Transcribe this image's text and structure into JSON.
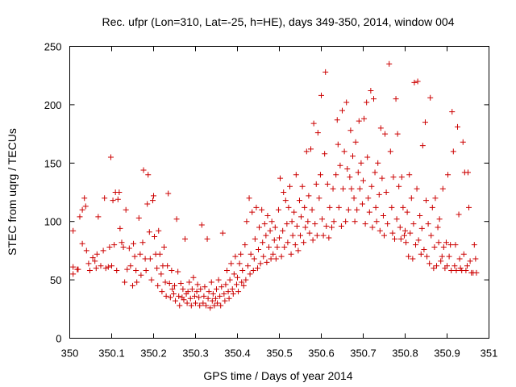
{
  "chart_data": {
    "type": "scatter",
    "title": "Rec. ufpr (Lon=310, Lat=-25, h=HE), days 349-350, 2014, window 004",
    "xlabel": "GPS time / Days of year 2014",
    "ylabel": "STEC from uqrg / TECUs",
    "xlim": [
      350,
      351
    ],
    "ylim": [
      0,
      250
    ],
    "xticks": [
      350,
      350.1,
      350.2,
      350.3,
      350.4,
      350.5,
      350.6,
      350.7,
      350.8,
      350.9,
      351
    ],
    "xtick_labels": [
      "350",
      "350.1",
      "350.2",
      "350.3",
      "350.4",
      "350.5",
      "350.6",
      "350.7",
      "350.8",
      "350.9",
      "351"
    ],
    "yticks": [
      0,
      50,
      100,
      150,
      200,
      250
    ],
    "ytick_labels": [
      "0",
      "50",
      "100",
      "150",
      "200",
      "250"
    ],
    "grid": false,
    "legend": "none",
    "marker": "plus",
    "color": "#cc0000",
    "points": [
      [
        350.008,
        92
      ],
      [
        350.008,
        61
      ],
      [
        350.008,
        55
      ],
      [
        350.018,
        59
      ],
      [
        350.02,
        59
      ],
      [
        350.024,
        104
      ],
      [
        350.03,
        110
      ],
      [
        350.03,
        81
      ],
      [
        350.035,
        120
      ],
      [
        350.038,
        113
      ],
      [
        350.04,
        75
      ],
      [
        350.045,
        64
      ],
      [
        350.048,
        58
      ],
      [
        350.055,
        69
      ],
      [
        350.06,
        66
      ],
      [
        350.063,
        60
      ],
      [
        350.065,
        72
      ],
      [
        350.068,
        104
      ],
      [
        350.074,
        62
      ],
      [
        350.08,
        75
      ],
      [
        350.083,
        120
      ],
      [
        350.086,
        60
      ],
      [
        350.092,
        61
      ],
      [
        350.095,
        78
      ],
      [
        350.098,
        155
      ],
      [
        350.1,
        62
      ],
      [
        350.103,
        118
      ],
      [
        350.106,
        80
      ],
      [
        350.109,
        125
      ],
      [
        350.112,
        58
      ],
      [
        350.115,
        119
      ],
      [
        350.118,
        125
      ],
      [
        350.12,
        94
      ],
      [
        350.124,
        82
      ],
      [
        350.128,
        78
      ],
      [
        350.131,
        48
      ],
      [
        350.134,
        110
      ],
      [
        350.137,
        59
      ],
      [
        350.142,
        77
      ],
      [
        350.145,
        62
      ],
      [
        350.15,
        45
      ],
      [
        350.152,
        81
      ],
      [
        350.155,
        70
      ],
      [
        350.158,
        58
      ],
      [
        350.16,
        48
      ],
      [
        350.165,
        103
      ],
      [
        350.168,
        72
      ],
      [
        350.17,
        54
      ],
      [
        350.174,
        82
      ],
      [
        350.176,
        144
      ],
      [
        350.18,
        68
      ],
      [
        350.182,
        58
      ],
      [
        350.185,
        115
      ],
      [
        350.187,
        140
      ],
      [
        350.19,
        91
      ],
      [
        350.192,
        68
      ],
      [
        350.195,
        50
      ],
      [
        350.198,
        118
      ],
      [
        350.2,
        122
      ],
      [
        350.202,
        87
      ],
      [
        350.205,
        72
      ],
      [
        350.208,
        60
      ],
      [
        350.21,
        45
      ],
      [
        350.212,
        92
      ],
      [
        350.215,
        72
      ],
      [
        350.218,
        55
      ],
      [
        350.22,
        40
      ],
      [
        350.222,
        62
      ],
      [
        350.225,
        78
      ],
      [
        350.228,
        48
      ],
      [
        350.23,
        36
      ],
      [
        350.233,
        62
      ],
      [
        350.235,
        124
      ],
      [
        350.238,
        47
      ],
      [
        350.24,
        35
      ],
      [
        350.243,
        58
      ],
      [
        350.245,
        42
      ],
      [
        350.248,
        38
      ],
      [
        350.25,
        45
      ],
      [
        350.252,
        32
      ],
      [
        350.255,
        102
      ],
      [
        350.258,
        57
      ],
      [
        350.26,
        36
      ],
      [
        350.262,
        28
      ],
      [
        350.265,
        47
      ],
      [
        350.268,
        35
      ],
      [
        350.27,
        42
      ],
      [
        350.272,
        33
      ],
      [
        350.275,
        85
      ],
      [
        350.278,
        38
      ],
      [
        350.28,
        30
      ],
      [
        350.282,
        40
      ],
      [
        350.285,
        48
      ],
      [
        350.288,
        34
      ],
      [
        350.29,
        28
      ],
      [
        350.292,
        42
      ],
      [
        350.295,
        52
      ],
      [
        350.298,
        36
      ],
      [
        350.3,
        30
      ],
      [
        350.303,
        40
      ],
      [
        350.305,
        46
      ],
      [
        350.308,
        35
      ],
      [
        350.31,
        28
      ],
      [
        350.312,
        42
      ],
      [
        350.315,
        97
      ],
      [
        350.318,
        30
      ],
      [
        350.32,
        36
      ],
      [
        350.322,
        44
      ],
      [
        350.325,
        28
      ],
      [
        350.328,
        85
      ],
      [
        350.33,
        34
      ],
      [
        350.332,
        40
      ],
      [
        350.335,
        26
      ],
      [
        350.338,
        48
      ],
      [
        350.34,
        32
      ],
      [
        350.342,
        38
      ],
      [
        350.345,
        28
      ],
      [
        350.348,
        34
      ],
      [
        350.35,
        42
      ],
      [
        350.352,
        30
      ],
      [
        350.355,
        50
      ],
      [
        350.358,
        36
      ],
      [
        350.36,
        28
      ],
      [
        350.362,
        44
      ],
      [
        350.365,
        90
      ],
      [
        350.368,
        38
      ],
      [
        350.37,
        32
      ],
      [
        350.372,
        46
      ],
      [
        350.375,
        58
      ],
      [
        350.378,
        40
      ],
      [
        350.38,
        34
      ],
      [
        350.382,
        50
      ],
      [
        350.385,
        64
      ],
      [
        350.388,
        42
      ],
      [
        350.39,
        38
      ],
      [
        350.392,
        55
      ],
      [
        350.395,
        70
      ],
      [
        350.398,
        46
      ],
      [
        350.4,
        52
      ],
      [
        350.402,
        40
      ],
      [
        350.405,
        64
      ],
      [
        350.408,
        72
      ],
      [
        350.41,
        48
      ],
      [
        350.412,
        58
      ],
      [
        350.415,
        45
      ],
      [
        350.418,
        80
      ],
      [
        350.42,
        50
      ],
      [
        350.422,
        100
      ],
      [
        350.425,
        62
      ],
      [
        350.428,
        120
      ],
      [
        350.43,
        55
      ],
      [
        350.432,
        72
      ],
      [
        350.435,
        108
      ],
      [
        350.438,
        58
      ],
      [
        350.44,
        68
      ],
      [
        350.442,
        85
      ],
      [
        350.445,
        112
      ],
      [
        350.448,
        60
      ],
      [
        350.45,
        76
      ],
      [
        350.452,
        95
      ],
      [
        350.455,
        64
      ],
      [
        350.458,
        110
      ],
      [
        350.46,
        82
      ],
      [
        350.462,
        70
      ],
      [
        350.465,
        98
      ],
      [
        350.468,
        88
      ],
      [
        350.47,
        65
      ],
      [
        350.472,
        105
      ],
      [
        350.475,
        78
      ],
      [
        350.478,
        92
      ],
      [
        350.48,
        68
      ],
      [
        350.482,
        100
      ],
      [
        350.485,
        72
      ],
      [
        350.488,
        84
      ],
      [
        350.49,
        95
      ],
      [
        350.492,
        68
      ],
      [
        350.495,
        78
      ],
      [
        350.498,
        110
      ],
      [
        350.5,
        86
      ],
      [
        350.502,
        137
      ],
      [
        350.505,
        70
      ],
      [
        350.508,
        92
      ],
      [
        350.51,
        125
      ],
      [
        350.512,
        78
      ],
      [
        350.515,
        118
      ],
      [
        350.518,
        98
      ],
      [
        350.52,
        82
      ],
      [
        350.522,
        112
      ],
      [
        350.525,
        130
      ],
      [
        350.528,
        72
      ],
      [
        350.53,
        100
      ],
      [
        350.532,
        88
      ],
      [
        350.535,
        108
      ],
      [
        350.538,
        80
      ],
      [
        350.54,
        140
      ],
      [
        350.542,
        96
      ],
      [
        350.545,
        75
      ],
      [
        350.548,
        118
      ],
      [
        350.55,
        88
      ],
      [
        350.552,
        104
      ],
      [
        350.555,
        130
      ],
      [
        350.558,
        82
      ],
      [
        350.56,
        112
      ],
      [
        350.562,
        95
      ],
      [
        350.565,
        160
      ],
      [
        350.568,
        100
      ],
      [
        350.57,
        122
      ],
      [
        350.572,
        90
      ],
      [
        350.575,
        162
      ],
      [
        350.578,
        110
      ],
      [
        350.58,
        84
      ],
      [
        350.582,
        184
      ],
      [
        350.585,
        98
      ],
      [
        350.588,
        132
      ],
      [
        350.59,
        88
      ],
      [
        350.592,
        176
      ],
      [
        350.595,
        120
      ],
      [
        350.598,
        140
      ],
      [
        350.6,
        208
      ],
      [
        350.602,
        102
      ],
      [
        350.605,
        88
      ],
      [
        350.608,
        158
      ],
      [
        350.61,
        228
      ],
      [
        350.612,
        96
      ],
      [
        350.615,
        132
      ],
      [
        350.618,
        86
      ],
      [
        350.62,
        112
      ],
      [
        350.625,
        95
      ],
      [
        350.628,
        128
      ],
      [
        350.63,
        100
      ],
      [
        350.635,
        140
      ],
      [
        350.638,
        187
      ],
      [
        350.64,
        166
      ],
      [
        350.642,
        112
      ],
      [
        350.645,
        148
      ],
      [
        350.648,
        96
      ],
      [
        350.65,
        195
      ],
      [
        350.652,
        128
      ],
      [
        350.655,
        160
      ],
      [
        350.658,
        100
      ],
      [
        350.66,
        202
      ],
      [
        350.662,
        145
      ],
      [
        350.665,
        110
      ],
      [
        350.668,
        138
      ],
      [
        350.67,
        178
      ],
      [
        350.672,
        128
      ],
      [
        350.675,
        156
      ],
      [
        350.678,
        120
      ],
      [
        350.68,
        100
      ],
      [
        350.682,
        168
      ],
      [
        350.685,
        110
      ],
      [
        350.688,
        142
      ],
      [
        350.69,
        186
      ],
      [
        350.692,
        128
      ],
      [
        350.695,
        150
      ],
      [
        350.698,
        115
      ],
      [
        350.7,
        135
      ],
      [
        350.702,
        188
      ],
      [
        350.705,
        98
      ],
      [
        350.708,
        202
      ],
      [
        350.71,
        155
      ],
      [
        350.712,
        120
      ],
      [
        350.715,
        108
      ],
      [
        350.718,
        212
      ],
      [
        350.72,
        130
      ],
      [
        350.722,
        95
      ],
      [
        350.725,
        205
      ],
      [
        350.728,
        142
      ],
      [
        350.73,
        112
      ],
      [
        350.732,
        100
      ],
      [
        350.735,
        150
      ],
      [
        350.738,
        123
      ],
      [
        350.74,
        92
      ],
      [
        350.742,
        180
      ],
      [
        350.745,
        137
      ],
      [
        350.748,
        105
      ],
      [
        350.75,
        88
      ],
      [
        350.752,
        175
      ],
      [
        350.755,
        125
      ],
      [
        350.758,
        98
      ],
      [
        350.762,
        235
      ],
      [
        350.765,
        160
      ],
      [
        350.768,
        112
      ],
      [
        350.77,
        90
      ],
      [
        350.772,
        138
      ],
      [
        350.775,
        85
      ],
      [
        350.778,
        205
      ],
      [
        350.78,
        102
      ],
      [
        350.782,
        175
      ],
      [
        350.785,
        130
      ],
      [
        350.788,
        95
      ],
      [
        350.79,
        85
      ],
      [
        350.792,
        138
      ],
      [
        350.795,
        112
      ],
      [
        350.798,
        88
      ],
      [
        350.8,
        92
      ],
      [
        350.802,
        82
      ],
      [
        350.805,
        108
      ],
      [
        350.808,
        70
      ],
      [
        350.81,
        140
      ],
      [
        350.812,
        90
      ],
      [
        350.815,
        120
      ],
      [
        350.818,
        68
      ],
      [
        350.82,
        98
      ],
      [
        350.822,
        219
      ],
      [
        350.825,
        80
      ],
      [
        350.828,
        128
      ],
      [
        350.83,
        220
      ],
      [
        350.832,
        84
      ],
      [
        350.835,
        105
      ],
      [
        350.838,
        72
      ],
      [
        350.84,
        94
      ],
      [
        350.842,
        165
      ],
      [
        350.845,
        76
      ],
      [
        350.848,
        185
      ],
      [
        350.85,
        118
      ],
      [
        350.852,
        70
      ],
      [
        350.855,
        98
      ],
      [
        350.858,
        64
      ],
      [
        350.86,
        206
      ],
      [
        350.862,
        88
      ],
      [
        350.865,
        112
      ],
      [
        350.868,
        60
      ],
      [
        350.87,
        78
      ],
      [
        350.872,
        120
      ],
      [
        350.875,
        62
      ],
      [
        350.878,
        95
      ],
      [
        350.88,
        82
      ],
      [
        350.882,
        102
      ],
      [
        350.885,
        66
      ],
      [
        350.888,
        70
      ],
      [
        350.89,
        128
      ],
      [
        350.892,
        78
      ],
      [
        350.895,
        60
      ],
      [
        350.898,
        82
      ],
      [
        350.9,
        62
      ],
      [
        350.902,
        140
      ],
      [
        350.905,
        70
      ],
      [
        350.908,
        80
      ],
      [
        350.91,
        58
      ],
      [
        350.912,
        194
      ],
      [
        350.915,
        160
      ],
      [
        350.918,
        62
      ],
      [
        350.92,
        80
      ],
      [
        350.922,
        58
      ],
      [
        350.925,
        181
      ],
      [
        350.928,
        106
      ],
      [
        350.93,
        68
      ],
      [
        350.932,
        60
      ],
      [
        350.935,
        58
      ],
      [
        350.938,
        168
      ],
      [
        350.94,
        72
      ],
      [
        350.942,
        142
      ],
      [
        350.945,
        58
      ],
      [
        350.948,
        62
      ],
      [
        350.95,
        142
      ],
      [
        350.952,
        112
      ],
      [
        350.955,
        66
      ],
      [
        350.958,
        56
      ],
      [
        350.962,
        56
      ],
      [
        350.965,
        80
      ],
      [
        350.968,
        68
      ],
      [
        350.97,
        56
      ]
    ]
  }
}
